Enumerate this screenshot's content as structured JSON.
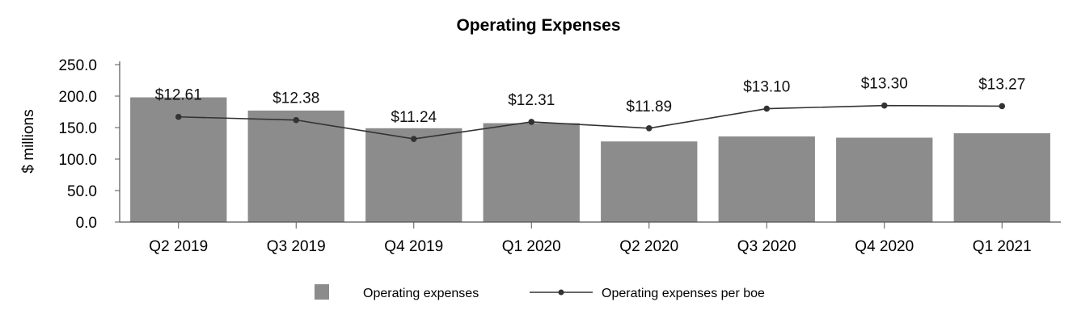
{
  "chart_data": {
    "type": "bar",
    "title": "Operating Expenses",
    "ylabel": "$ millions",
    "xlabel": "",
    "ylim": [
      0,
      250
    ],
    "yticks": [
      "0.0",
      "50.0",
      "100.0",
      "150.0",
      "200.0",
      "250.0"
    ],
    "categories": [
      "Q2 2019",
      "Q3 2019",
      "Q4 2019",
      "Q1 2020",
      "Q2 2020",
      "Q3 2020",
      "Q4 2020",
      "Q1 2021"
    ],
    "series": [
      {
        "name": "Operating expenses",
        "type": "bar",
        "color": "#8c8c8c",
        "values": [
          198,
          177,
          149,
          157,
          128,
          136,
          134,
          141
        ]
      },
      {
        "name": "Operating expenses per boe",
        "type": "line",
        "color": "#333333",
        "plot_values": [
          167,
          162,
          132,
          159,
          149,
          180,
          185,
          184
        ],
        "labels": [
          "$12.61",
          "$12.38",
          "$11.24",
          "$12.31",
          "$11.89",
          "$13.10",
          "$13.30",
          "$13.27"
        ]
      }
    ],
    "legend_position": "bottom-center"
  }
}
